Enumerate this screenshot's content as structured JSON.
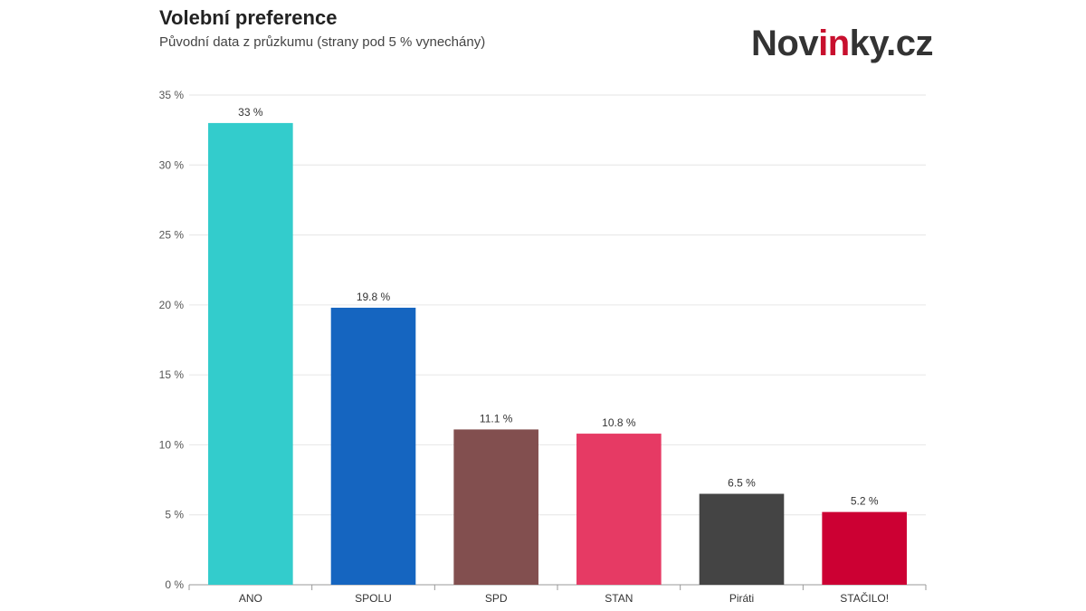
{
  "header": {
    "title": "Volební preference",
    "subtitle": "Původní data z průzkumu (strany pod 5 % vynechány)"
  },
  "logo": {
    "part1": "Nov",
    "part2": "in",
    "part3": "ky.cz",
    "accent_color": "#c8102e"
  },
  "chart_data": {
    "type": "bar",
    "title": "Volební preference",
    "subtitle": "Původní data z průzkumu (strany pod 5 % vynechány)",
    "xlabel": "",
    "ylabel": "",
    "categories": [
      "ANO",
      "SPOLU",
      "SPD",
      "STAN",
      "Piráti",
      "STAČILO!"
    ],
    "values": [
      33,
      19.8,
      11.1,
      10.8,
      6.5,
      5.2
    ],
    "value_labels": [
      "33 %",
      "19.8 %",
      "11.1 %",
      "10.8 %",
      "6.5 %",
      "5.2 %"
    ],
    "colors": [
      "#33cccc",
      "#1565c0",
      "#824f4f",
      "#e63a64",
      "#444444",
      "#cc0033"
    ],
    "ylim": [
      0,
      35
    ],
    "yticks": [
      0,
      5,
      10,
      15,
      20,
      25,
      30,
      35
    ],
    "ytick_labels": [
      "0 %",
      "5 %",
      "10 %",
      "15 %",
      "20 %",
      "25 %",
      "30 %",
      "35 %"
    ],
    "grid": true,
    "legend": "none"
  }
}
